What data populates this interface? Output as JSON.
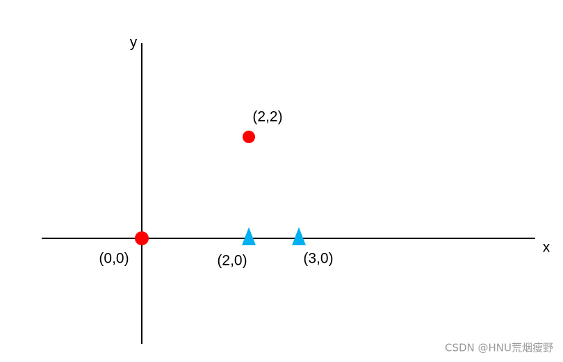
{
  "axes": {
    "x_label": "x",
    "y_label": "y"
  },
  "points": [
    {
      "label": "(2,2)"
    },
    {
      "label": "(0,0)"
    },
    {
      "label": "(2,0)"
    },
    {
      "label": "(3,0)"
    }
  ],
  "watermark": "CSDN @HNU荒烟瘦野"
}
